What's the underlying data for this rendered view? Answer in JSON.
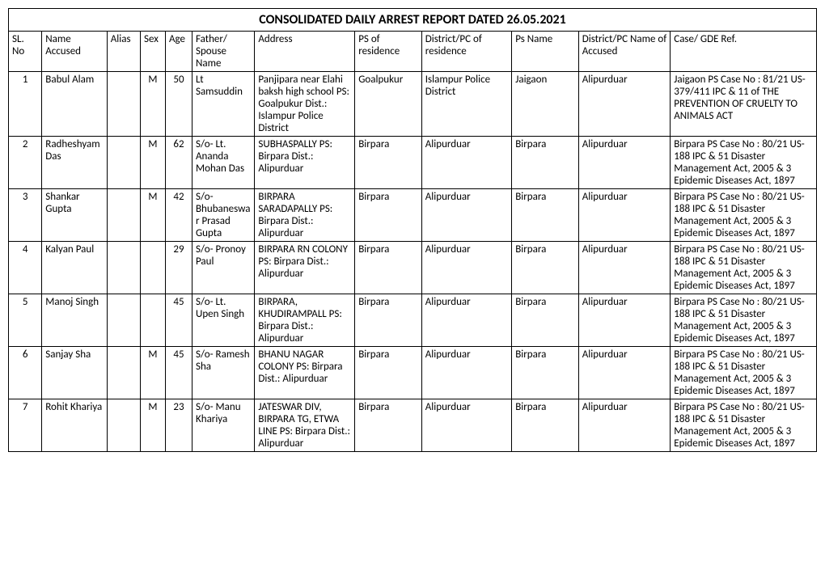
{
  "title": "CONSOLIDATED DAILY ARREST REPORT DATED 26.05.2021",
  "headers": {
    "sl": "SL. No",
    "name": "Name Accused",
    "alias": "Alias",
    "sex": "Sex",
    "age": "Age",
    "father": "Father/ Spouse Name",
    "address": "Address",
    "psres": "PS of residence",
    "distres": "District/PC of residence",
    "psname": "Ps Name",
    "distacc": "District/PC Name of Accused",
    "case": "Case/ GDE Ref."
  },
  "rows": [
    {
      "sl": "1",
      "name": "Babul Alam",
      "alias": "",
      "sex": "M",
      "age": "50",
      "father": "Lt Samsuddin",
      "address": "Panjipara near Elahi baksh high school PS: Goalpukur Dist.: Islampur Police District",
      "psres": "Goalpukur",
      "distres": "Islampur Police District",
      "psname": "Jaigaon",
      "distacc": "Alipurduar",
      "case": "Jaigaon PS Case No : 81/21 US-379/411 IPC &  11 of THE PREVENTION OF CRUELTY TO ANIMALS ACT"
    },
    {
      "sl": "2",
      "name": "Radheshyam Das",
      "alias": "",
      "sex": "M",
      "age": "62",
      "father": "S/o-  Lt. Ananda Mohan Das",
      "address": "SUBHASPALLY PS: Birpara Dist.: Alipurduar",
      "psres": "Birpara",
      "distres": "Alipurduar",
      "psname": "Birpara",
      "distacc": "Alipurduar",
      "case": "Birpara PS Case No : 80/21 US-188 IPC &  51 Disaster Management Act, 2005 & 3 Epidemic Diseases Act, 1897"
    },
    {
      "sl": "3",
      "name": "Shankar Gupta",
      "alias": "",
      "sex": "M",
      "age": "42",
      "father": "S/o-  Bhubaneswar Prasad Gupta",
      "address": "BIRPARA SARADAPALLY PS: Birpara Dist.: Alipurduar",
      "psres": "Birpara",
      "distres": "Alipurduar",
      "psname": "Birpara",
      "distacc": "Alipurduar",
      "case": "Birpara PS Case No : 80/21 US-188 IPC &  51 Disaster Management Act, 2005 & 3 Epidemic Diseases Act, 1897"
    },
    {
      "sl": "4",
      "name": "Kalyan Paul",
      "alias": "",
      "sex": "",
      "age": "29",
      "father": "S/o-  Pronoy Paul",
      "address": "BIRPARA RN COLONY PS: Birpara Dist.: Alipurduar",
      "psres": "Birpara",
      "distres": "Alipurduar",
      "psname": "Birpara",
      "distacc": "Alipurduar",
      "case": "Birpara PS Case No : 80/21 US-188 IPC &  51 Disaster Management Act, 2005 & 3 Epidemic Diseases Act, 1897"
    },
    {
      "sl": "5",
      "name": "Manoj Singh",
      "alias": "",
      "sex": "",
      "age": "45",
      "father": "S/o-  Lt. Upen Singh",
      "address": "BIRPARA, KHUDIRAMPALL PS: Birpara Dist.: Alipurduar",
      "psres": "Birpara",
      "distres": "Alipurduar",
      "psname": "Birpara",
      "distacc": "Alipurduar",
      "case": "Birpara PS Case No : 80/21 US-188 IPC &  51 Disaster Management Act, 2005 & 3 Epidemic Diseases Act, 1897"
    },
    {
      "sl": "6",
      "name": "Sanjay Sha",
      "alias": "",
      "sex": "M",
      "age": "45",
      "father": "S/o-  Ramesh Sha",
      "address": "BHANU NAGAR COLONY PS: Birpara Dist.: Alipurduar",
      "psres": "Birpara",
      "distres": "Alipurduar",
      "psname": "Birpara",
      "distacc": "Alipurduar",
      "case": "Birpara PS Case No : 80/21 US-188 IPC &  51 Disaster Management Act, 2005 & 3 Epidemic Diseases Act, 1897"
    },
    {
      "sl": "7",
      "name": "Rohit Khariya",
      "alias": "",
      "sex": "M",
      "age": "23",
      "father": "S/o-  Manu Khariya",
      "address": "JATESWAR DIV, BIRPARA TG, ETWA LINE PS: Birpara Dist.: Alipurduar",
      "psres": "Birpara",
      "distres": "Alipurduar",
      "psname": "Birpara",
      "distacc": "Alipurduar",
      "case": "Birpara PS Case No : 80/21 US-188 IPC &  51 Disaster Management Act, 2005 & 3 Epidemic Diseases Act, 1897"
    }
  ]
}
